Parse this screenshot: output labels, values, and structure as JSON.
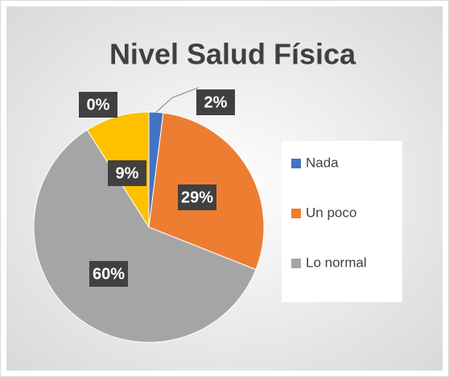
{
  "chart_data": {
    "type": "pie",
    "title": "Nivel Salud Física",
    "categories": [
      "Nada",
      "Un poco",
      "Lo normal",
      null,
      null
    ],
    "values": [
      2,
      29,
      60,
      9,
      0
    ],
    "value_labels": [
      "2%",
      "29%",
      "60%",
      "9%",
      "0%"
    ],
    "colors": [
      "#4472c4",
      "#ed7d31",
      "#a5a5a5",
      "#ffc000",
      "#5b9bd5"
    ],
    "legend": "right"
  }
}
